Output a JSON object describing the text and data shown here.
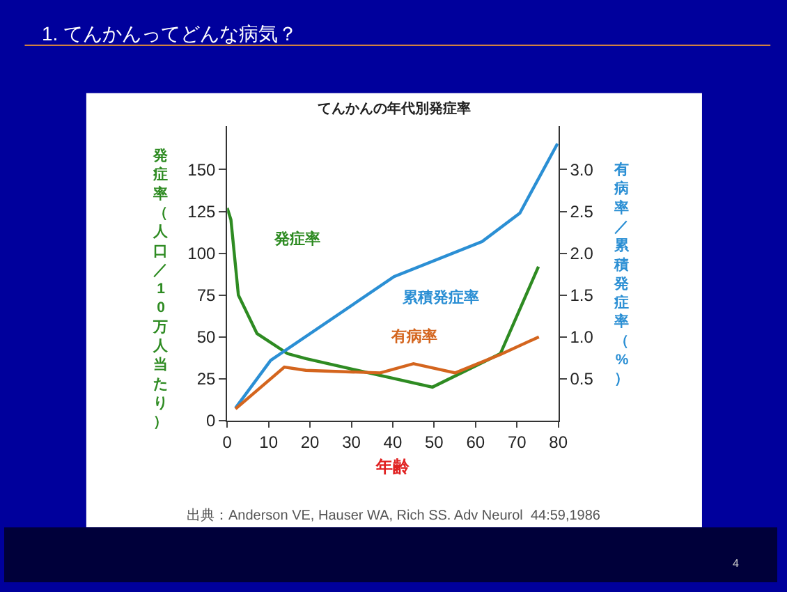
{
  "chart_data": {
    "type": "line",
    "title": "1. てんかんってどんな病気？",
    "subtitle": "てんかんの年代別発症率",
    "xlabel": "年齢",
    "ylabel": "発症率（人口／10万人当たり）",
    "y2label": "有病率／累積発症率（%）",
    "xlim": [
      0,
      80
    ],
    "xticks": [
      0,
      10,
      20,
      30,
      40,
      50,
      60,
      70,
      80
    ],
    "ylim": [
      0,
      176
    ],
    "yticks": [
      0,
      25,
      50,
      75,
      100,
      125,
      150
    ],
    "y2lim": [
      0,
      3.52
    ],
    "y2ticks": [
      0.5,
      {
        "value": 1,
        "label": "1.0"
      },
      1.5,
      {
        "value": 2,
        "label": "2.0"
      },
      2.5,
      {
        "value": 3,
        "label": "3.0"
      }
    ],
    "legend": false,
    "marker": "none",
    "line_style": "solid",
    "series": [
      {
        "name": "発症率",
        "color": "#2e8b22",
        "x": [
          0,
          0.9,
          2.7,
          7.2,
          14.6,
          19,
          49.6,
          66,
          75.2
        ],
        "values": [
          127,
          120,
          75,
          52,
          40,
          37,
          20,
          40,
          92
        ]
      },
      {
        "name": "累積発症率",
        "color": "#2b8fd4",
        "axis": "y2",
        "x": [
          2,
          10.5,
          40.3,
          61.6,
          70.7,
          79.8
        ],
        "values": [
          0.15,
          0.72,
          1.72,
          2.14,
          2.48,
          3.31
        ]
      },
      {
        "name": "有病率",
        "color": "#d4651e",
        "axis": "y2",
        "x": [
          2,
          13.8,
          19,
          37,
          45,
          55.1,
          66,
          75.3
        ],
        "values": [
          0.14,
          0.64,
          0.6,
          0.57,
          0.68,
          0.57,
          0.79,
          1.0
        ]
      }
    ],
    "annotations": [
      "出典：Anderson VE, Hauser WA, Rich SS. Adv Neurol  44:59,1986",
      "4"
    ]
  }
}
